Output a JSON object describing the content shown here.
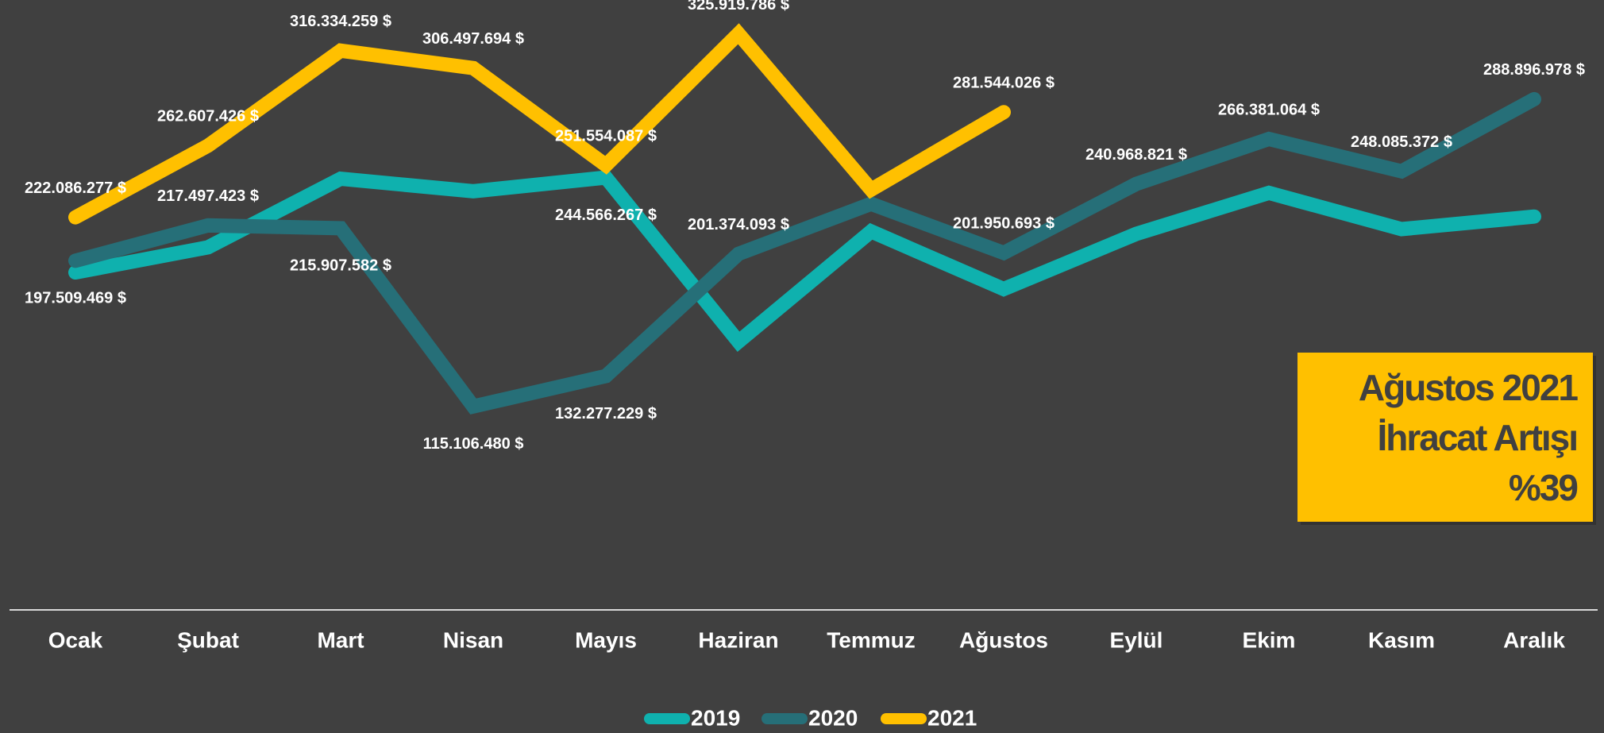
{
  "chart_data": {
    "type": "line",
    "categories": [
      "Ocak",
      "Şubat",
      "Mart",
      "Nisan",
      "Mayıs",
      "Haziran",
      "Temmuz",
      "Ağustos",
      "Eylül",
      "Ekim",
      "Kasım",
      "Aralık"
    ],
    "series": [
      {
        "name": "2019",
        "color": "#0fb1ae",
        "values": [
          190900000,
          205100000,
          243900000,
          236800000,
          244566267,
          151700000,
          214100000,
          181500000,
          212700000,
          235900000,
          215400000,
          222500000
        ],
        "value_labels": [
          null,
          null,
          null,
          null,
          "244.566.267 $",
          null,
          null,
          null,
          null,
          null,
          null,
          null
        ]
      },
      {
        "name": "2020",
        "color": "#266f78",
        "values": [
          197509469,
          217497423,
          215907582,
          115106480,
          132277229,
          201374093,
          229700000,
          201950693,
          240968821,
          266381064,
          248085372,
          288896978
        ],
        "value_labels": [
          "197.509.469 $",
          "217.497.423 $",
          "215.907.582 $",
          "115.106.480 $",
          "132.277.229 $",
          "201.374.093 $",
          null,
          "201.950.693 $",
          "240.968.821 $",
          "266.381.064 $",
          "248.085.372 $",
          "288.896.978 $"
        ]
      },
      {
        "name": "2021",
        "color": "#ffc000",
        "values": [
          222086277,
          262607426,
          316334259,
          306497694,
          251554087,
          325919786,
          237700000,
          281544026,
          null,
          null,
          null,
          null
        ],
        "value_labels": [
          "222.086.277 $",
          "262.607.426 $",
          "316.334.259 $",
          "306.497.694 $",
          "251.554.087 $",
          "325.919.786 $",
          null,
          "281.544.026 $",
          null,
          null,
          null,
          null
        ]
      }
    ],
    "ylim": [
      0,
      345000000
    ],
    "annotation": {
      "lines": [
        "Ağustos 2021",
        "İhracat Artışı",
        "%39"
      ],
      "color": "#ffc000"
    }
  }
}
